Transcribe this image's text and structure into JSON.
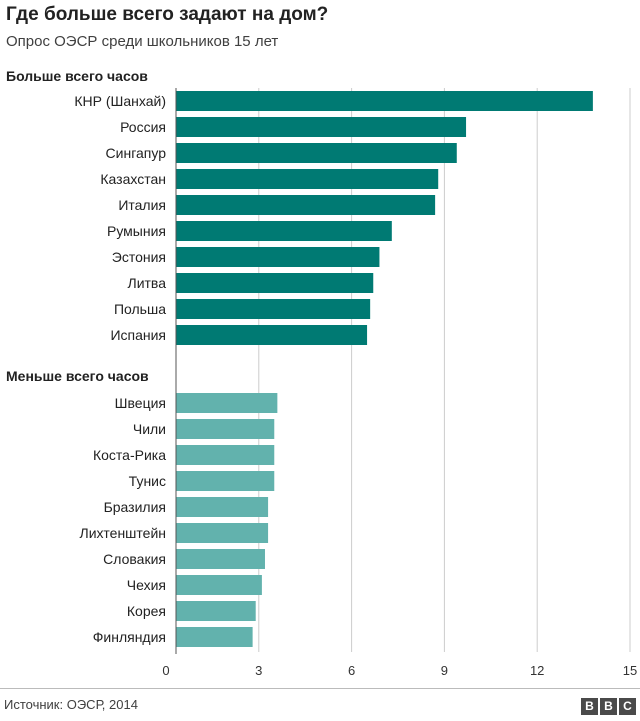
{
  "title": "Где больше всего задают на дом?",
  "subtitle": "Опрос ОЭСР среди школьников 15 лет",
  "source": "Источник: ОЭСР, 2014",
  "logo": [
    "B",
    "B",
    "C"
  ],
  "colors": {
    "most": "#007a73",
    "least": "#62b2ad",
    "grid": "#cccccc",
    "axis": "#555555"
  },
  "chart_data": {
    "type": "bar",
    "orientation": "horizontal",
    "title": "Где больше всего задают на дом?",
    "xlabel": "",
    "ylabel": "",
    "xlim": [
      0,
      15
    ],
    "xticks": [
      0,
      3,
      6,
      9,
      12,
      15
    ],
    "grid": true,
    "groups": [
      {
        "name": "Больше всего часов",
        "color": "#007a73",
        "categories": [
          "КНР (Шанхай)",
          "Россия",
          "Сингапур",
          "Казахстан",
          "Италия",
          "Румыния",
          "Эстония",
          "Литва",
          "Польша",
          "Испания"
        ],
        "values": [
          13.8,
          9.7,
          9.4,
          8.8,
          8.7,
          7.3,
          6.9,
          6.7,
          6.6,
          6.5
        ]
      },
      {
        "name": "Меньше всего часов",
        "color": "#62b2ad",
        "categories": [
          "Швеция",
          "Чили",
          "Коста-Рика",
          "Тунис",
          "Бразилия",
          "Лихтенштейн",
          "Словакия",
          "Чехия",
          "Корея",
          "Финляндия"
        ],
        "values": [
          3.6,
          3.5,
          3.5,
          3.5,
          3.3,
          3.3,
          3.2,
          3.1,
          2.9,
          2.8
        ]
      }
    ]
  }
}
